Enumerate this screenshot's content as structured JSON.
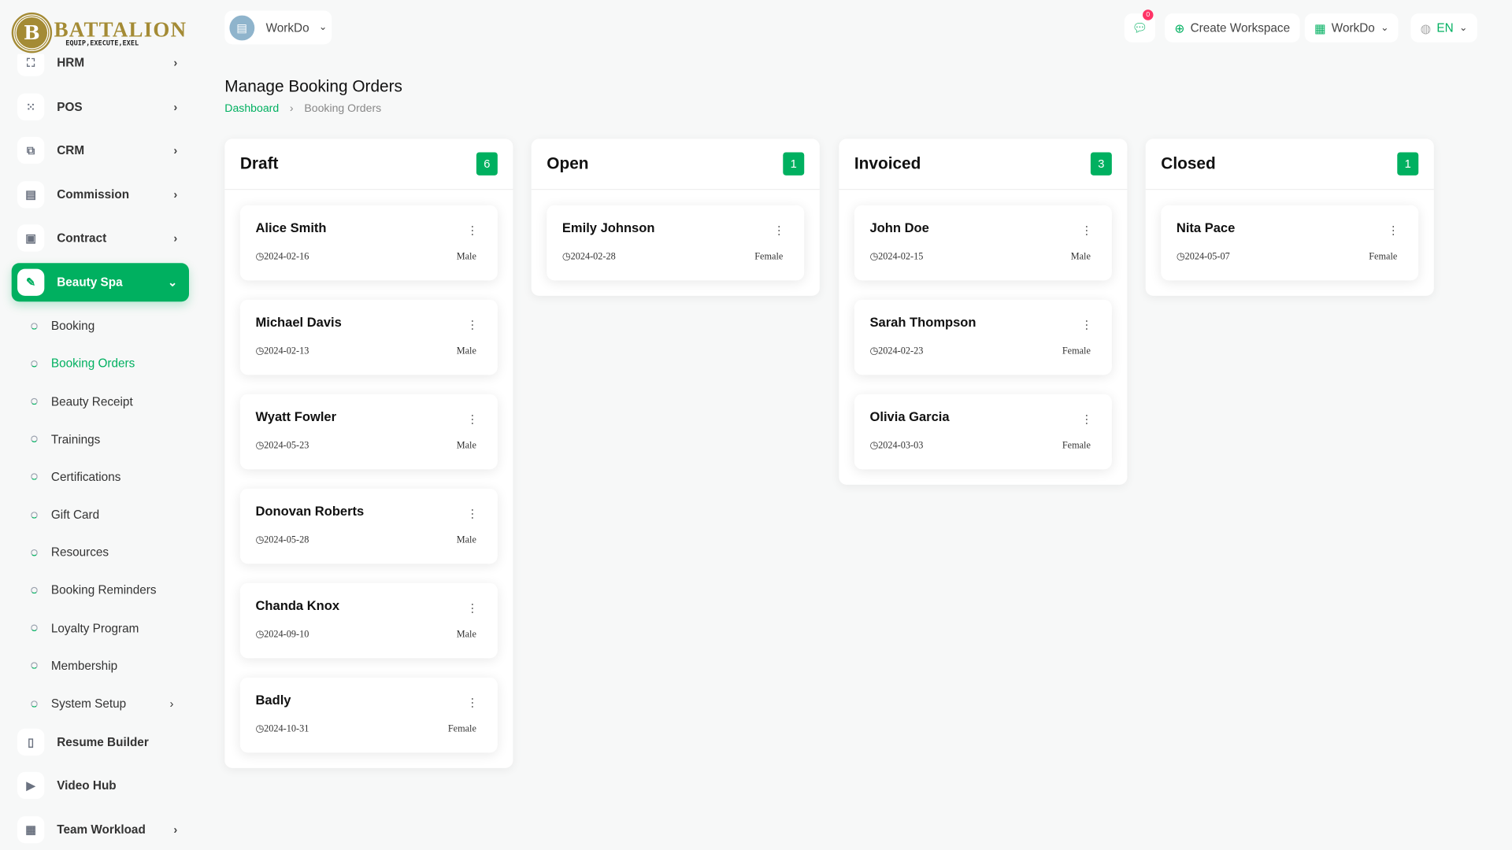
{
  "logo": {
    "brand": "BATTALION",
    "tagline": "EQUIP,EXECUTE,EXEL",
    "initial": "B"
  },
  "sidebar": {
    "items": [
      {
        "label": "HRM",
        "icon": "users-icon"
      },
      {
        "label": "POS",
        "icon": "grid-icon"
      },
      {
        "label": "CRM",
        "icon": "layers-icon"
      },
      {
        "label": "Commission",
        "icon": "calculator-icon"
      },
      {
        "label": "Contract",
        "icon": "floppy-icon"
      },
      {
        "label": "Beauty Spa",
        "icon": "brush-icon",
        "active": true
      }
    ],
    "sub_items": [
      "Booking",
      "Booking Orders",
      "Beauty Receipt",
      "Trainings",
      "Certifications",
      "Gift Card",
      "Resources",
      "Booking Reminders",
      "Loyalty Program",
      "Membership",
      "System Setup"
    ],
    "bottom_items": [
      {
        "label": "Resume Builder",
        "icon": "file-icon"
      },
      {
        "label": "Video Hub",
        "icon": "video-icon"
      },
      {
        "label": "Team Workload",
        "icon": "calendar-icon"
      }
    ]
  },
  "topbar": {
    "workspace": "WorkDo",
    "notifications": "0",
    "create_workspace": "Create Workspace",
    "workspace_switch": "WorkDo",
    "language": "EN"
  },
  "page": {
    "title": "Manage Booking Orders",
    "breadcrumb": [
      "Dashboard",
      "Booking Orders"
    ]
  },
  "accent": "#00b060",
  "columns": [
    {
      "title": "Draft",
      "count": "6",
      "cards": [
        {
          "name": "Alice Smith",
          "date": "2024-02-16",
          "gender": "Male"
        },
        {
          "name": "Michael Davis",
          "date": "2024-02-13",
          "gender": "Male"
        },
        {
          "name": "Wyatt Fowler",
          "date": "2024-05-23",
          "gender": "Male"
        },
        {
          "name": "Donovan Roberts",
          "date": "2024-05-28",
          "gender": "Male"
        },
        {
          "name": "Chanda Knox",
          "date": "2024-09-10",
          "gender": "Male"
        },
        {
          "name": "Badly",
          "date": "2024-10-31",
          "gender": "Female"
        }
      ]
    },
    {
      "title": "Open",
      "count": "1",
      "cards": [
        {
          "name": "Emily Johnson",
          "date": "2024-02-28",
          "gender": "Female"
        }
      ]
    },
    {
      "title": "Invoiced",
      "count": "3",
      "cards": [
        {
          "name": "John Doe",
          "date": "2024-02-15",
          "gender": "Male"
        },
        {
          "name": "Sarah Thompson",
          "date": "2024-02-23",
          "gender": "Female"
        },
        {
          "name": "Olivia Garcia",
          "date": "2024-03-03",
          "gender": "Female"
        }
      ]
    },
    {
      "title": "Closed",
      "count": "1",
      "cards": [
        {
          "name": "Nita Pace",
          "date": "2024-05-07",
          "gender": "Female"
        }
      ]
    }
  ]
}
